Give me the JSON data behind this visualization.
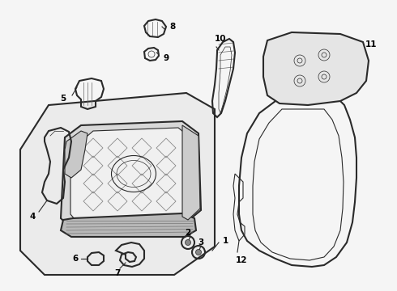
{
  "background_color": "#f5f5f5",
  "line_color": "#2a2a2a",
  "label_color": "#000000",
  "fig_width": 4.9,
  "fig_height": 3.6,
  "dpi": 100,
  "font_size": 7.5,
  "font_weight": "bold",
  "lw_outer": 1.5,
  "lw_inner": 0.8,
  "lw_thin": 0.5,
  "seat_frame_bg": "#e8e8e8",
  "seat_pad_bg": "#f0f0f0"
}
